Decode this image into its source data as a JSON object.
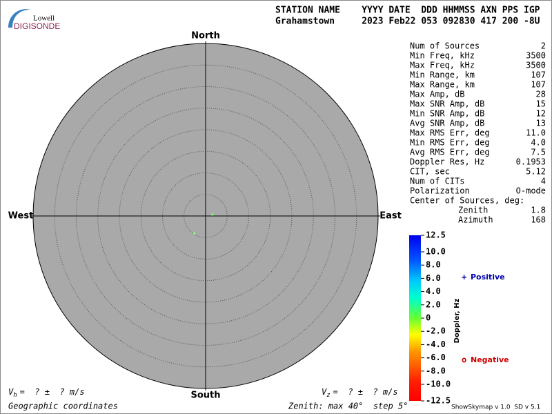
{
  "logo": {
    "top": "Lowell",
    "bottom": "DIGISONDE"
  },
  "header": {
    "columns": "STATION NAME    YYYY DATE  DDD HHMMSS AXN PPS IGP",
    "values": "Grahamstown     2023 Feb22 053 092830 417 200 -8U"
  },
  "stats": [
    [
      "Num of Sources",
      "2"
    ],
    [
      "Min Freq, kHz",
      "3500"
    ],
    [
      "Max Freq, kHz",
      "3500"
    ],
    [
      "Min Range, km",
      "107"
    ],
    [
      "Max Range, km",
      "107"
    ],
    [
      "Max Amp, dB",
      "28"
    ],
    [
      "Max SNR Amp, dB",
      "15"
    ],
    [
      "Min SNR Amp, dB",
      "12"
    ],
    [
      "Avg SNR Amp, dB",
      "13"
    ],
    [
      "Max RMS Err, deg",
      "11.0"
    ],
    [
      "Min RMS Err, deg",
      "4.0"
    ],
    [
      "Avg RMS Err, deg",
      "7.5"
    ],
    [
      "Doppler Res, Hz",
      "0.1953"
    ],
    [
      "CIT, sec",
      "5.12"
    ],
    [
      "Num of CITs",
      "4"
    ],
    [
      "Polarization",
      "O-mode"
    ]
  ],
  "center": {
    "title": "Center of Sources, deg:",
    "rows": [
      [
        "Zenith",
        "1.8"
      ],
      [
        "Azimuth",
        "168"
      ]
    ]
  },
  "velocity": {
    "horizontal": {
      "symbol": "V",
      "sub": "h",
      "text": "=  ? ±  ? m/s"
    },
    "vertical": {
      "symbol": "V",
      "sub": "z",
      "text": "=  ? ±  ? m/s"
    }
  },
  "footer": {
    "left": "Geographic coordinates",
    "middle": "Zenith: max 40°  step 5°",
    "right": "ShowSkymap v 1.0  SD v 5.1"
  },
  "chart_data": {
    "type": "skymap",
    "directions": {
      "north": "North",
      "south": "South",
      "east": "East",
      "west": "West"
    },
    "rlim": [
      0,
      40
    ],
    "rticks": [
      5,
      10,
      15,
      20,
      25,
      30,
      35
    ],
    "azimuth": [
      79,
      213
    ],
    "zenith": [
      1.6,
      4.8
    ],
    "doppler": [
      0.2,
      -0.3
    ],
    "point_color": "#7dff7d",
    "colorbar": {
      "label": "Doppler, Hz",
      "clim": [
        -12.5,
        12.5
      ],
      "ticks": [
        12.5,
        {
          "value": 10,
          "label": "10.0"
        },
        {
          "value": 8,
          "label": "8.0"
        },
        {
          "value": 6,
          "label": "6.0"
        },
        {
          "value": 4,
          "label": "4.0"
        },
        {
          "value": 2,
          "label": "2.0"
        },
        0,
        {
          "value": -2,
          "label": "-2.0"
        },
        {
          "value": -4,
          "label": "-4.0"
        },
        {
          "value": -6,
          "label": "-6.0"
        },
        {
          "value": -8,
          "label": "-8.0"
        },
        {
          "value": -10,
          "label": "-10.0"
        },
        -12.5
      ]
    },
    "legend": [
      {
        "symbol": "+",
        "name": "Positive",
        "color": "#0000aa"
      },
      {
        "symbol": "o",
        "name": "Negative",
        "color": "#cc0000"
      }
    ]
  }
}
